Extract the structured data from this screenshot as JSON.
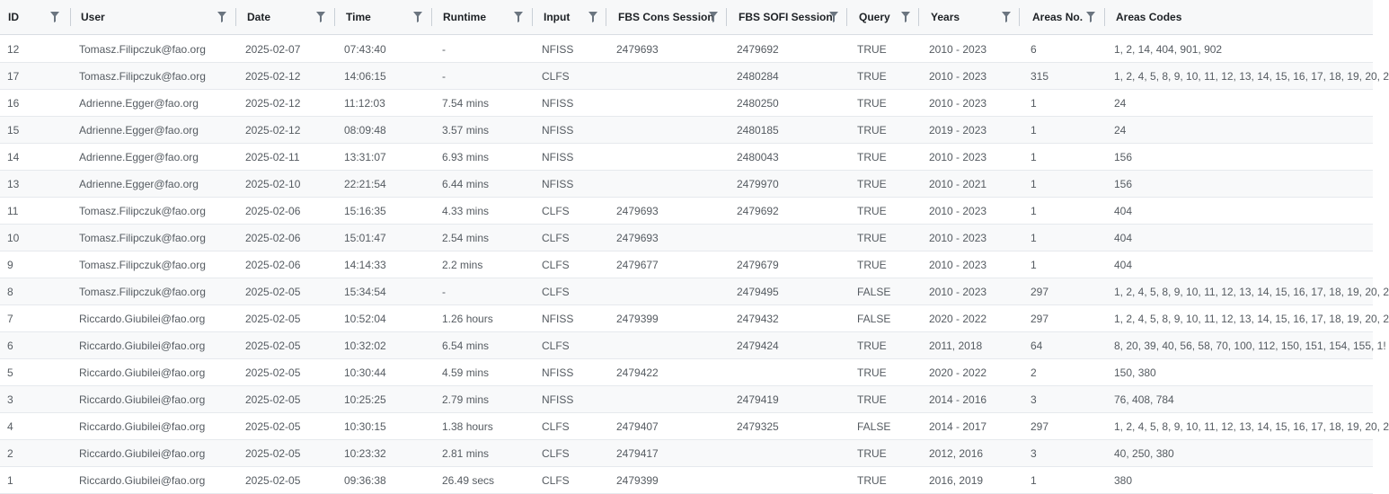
{
  "columns": [
    {
      "key": "id",
      "label": "ID",
      "name": "id"
    },
    {
      "key": "user",
      "label": "User",
      "name": "user"
    },
    {
      "key": "date",
      "label": "Date",
      "name": "date"
    },
    {
      "key": "time",
      "label": "Time",
      "name": "time"
    },
    {
      "key": "runtime",
      "label": "Runtime",
      "name": "runtime"
    },
    {
      "key": "input",
      "label": "Input",
      "name": "input"
    },
    {
      "key": "fbs_cons",
      "label": "FBS Cons Session",
      "name": "fbs-cons-session"
    },
    {
      "key": "fbs_sofi",
      "label": "FBS SOFI Session",
      "name": "fbs-sofi-session"
    },
    {
      "key": "query",
      "label": "Query",
      "name": "query"
    },
    {
      "key": "years",
      "label": "Years",
      "name": "years"
    },
    {
      "key": "areas_no",
      "label": "Areas No.",
      "name": "areas-no"
    },
    {
      "key": "areas_codes",
      "label": "Areas Codes",
      "name": "areas-codes"
    }
  ],
  "rows": [
    {
      "id": "12",
      "user": "Tomasz.Filipczuk@fao.org",
      "date": "2025-02-07",
      "time": "07:43:40",
      "runtime": "-",
      "input": "NFISS",
      "fbs_cons": "2479693",
      "fbs_sofi": "2479692",
      "query": "TRUE",
      "years": "2010 - 2023",
      "areas_no": "6",
      "areas_codes": "1, 2, 14, 404, 901, 902"
    },
    {
      "id": "17",
      "user": "Tomasz.Filipczuk@fao.org",
      "date": "2025-02-12",
      "time": "14:06:15",
      "runtime": "-",
      "input": "CLFS",
      "fbs_cons": "",
      "fbs_sofi": "2480284",
      "query": "TRUE",
      "years": "2010 - 2023",
      "areas_no": "315",
      "areas_codes": "1, 2, 4, 5, 8, 9, 10, 11, 12, 13, 14, 15, 16, 17, 18, 19, 20, 2"
    },
    {
      "id": "16",
      "user": "Adrienne.Egger@fao.org",
      "date": "2025-02-12",
      "time": "11:12:03",
      "runtime": "7.54 mins",
      "input": "NFISS",
      "fbs_cons": "",
      "fbs_sofi": "2480250",
      "query": "TRUE",
      "years": "2010 - 2023",
      "areas_no": "1",
      "areas_codes": "24"
    },
    {
      "id": "15",
      "user": "Adrienne.Egger@fao.org",
      "date": "2025-02-12",
      "time": "08:09:48",
      "runtime": "3.57 mins",
      "input": "NFISS",
      "fbs_cons": "",
      "fbs_sofi": "2480185",
      "query": "TRUE",
      "years": "2019 - 2023",
      "areas_no": "1",
      "areas_codes": "24"
    },
    {
      "id": "14",
      "user": "Adrienne.Egger@fao.org",
      "date": "2025-02-11",
      "time": "13:31:07",
      "runtime": "6.93 mins",
      "input": "NFISS",
      "fbs_cons": "",
      "fbs_sofi": "2480043",
      "query": "TRUE",
      "years": "2010 - 2023",
      "areas_no": "1",
      "areas_codes": "156"
    },
    {
      "id": "13",
      "user": "Adrienne.Egger@fao.org",
      "date": "2025-02-10",
      "time": "22:21:54",
      "runtime": "6.44 mins",
      "input": "NFISS",
      "fbs_cons": "",
      "fbs_sofi": "2479970",
      "query": "TRUE",
      "years": "2010 - 2021",
      "areas_no": "1",
      "areas_codes": "156"
    },
    {
      "id": "11",
      "user": "Tomasz.Filipczuk@fao.org",
      "date": "2025-02-06",
      "time": "15:16:35",
      "runtime": "4.33 mins",
      "input": "CLFS",
      "fbs_cons": "2479693",
      "fbs_sofi": "2479692",
      "query": "TRUE",
      "years": "2010 - 2023",
      "areas_no": "1",
      "areas_codes": "404"
    },
    {
      "id": "10",
      "user": "Tomasz.Filipczuk@fao.org",
      "date": "2025-02-06",
      "time": "15:01:47",
      "runtime": "2.54 mins",
      "input": "CLFS",
      "fbs_cons": "2479693",
      "fbs_sofi": "",
      "query": "TRUE",
      "years": "2010 - 2023",
      "areas_no": "1",
      "areas_codes": "404"
    },
    {
      "id": "9",
      "user": "Tomasz.Filipczuk@fao.org",
      "date": "2025-02-06",
      "time": "14:14:33",
      "runtime": "2.2 mins",
      "input": "CLFS",
      "fbs_cons": "2479677",
      "fbs_sofi": "2479679",
      "query": "TRUE",
      "years": "2010 - 2023",
      "areas_no": "1",
      "areas_codes": "404"
    },
    {
      "id": "8",
      "user": "Tomasz.Filipczuk@fao.org",
      "date": "2025-02-05",
      "time": "15:34:54",
      "runtime": "-",
      "input": "CLFS",
      "fbs_cons": "",
      "fbs_sofi": "2479495",
      "query": "FALSE",
      "years": "2010 - 2023",
      "areas_no": "297",
      "areas_codes": "1, 2, 4, 5, 8, 9, 10, 11, 12, 13, 14, 15, 16, 17, 18, 19, 20, 2"
    },
    {
      "id": "7",
      "user": "Riccardo.Giubilei@fao.org",
      "date": "2025-02-05",
      "time": "10:52:04",
      "runtime": "1.26 hours",
      "input": "NFISS",
      "fbs_cons": "2479399",
      "fbs_sofi": "2479432",
      "query": "FALSE",
      "years": "2020 - 2022",
      "areas_no": "297",
      "areas_codes": "1, 2, 4, 5, 8, 9, 10, 11, 12, 13, 14, 15, 16, 17, 18, 19, 20, 2"
    },
    {
      "id": "6",
      "user": "Riccardo.Giubilei@fao.org",
      "date": "2025-02-05",
      "time": "10:32:02",
      "runtime": "6.54 mins",
      "input": "CLFS",
      "fbs_cons": "",
      "fbs_sofi": "2479424",
      "query": "TRUE",
      "years": "2011, 2018",
      "areas_no": "64",
      "areas_codes": "8, 20, 39, 40, 56, 58, 70, 100, 112, 150, 151, 154, 155, 1!"
    },
    {
      "id": "5",
      "user": "Riccardo.Giubilei@fao.org",
      "date": "2025-02-05",
      "time": "10:30:44",
      "runtime": "4.59 mins",
      "input": "NFISS",
      "fbs_cons": "2479422",
      "fbs_sofi": "",
      "query": "TRUE",
      "years": "2020 - 2022",
      "areas_no": "2",
      "areas_codes": "150, 380"
    },
    {
      "id": "3",
      "user": "Riccardo.Giubilei@fao.org",
      "date": "2025-02-05",
      "time": "10:25:25",
      "runtime": "2.79 mins",
      "input": "NFISS",
      "fbs_cons": "",
      "fbs_sofi": "2479419",
      "query": "TRUE",
      "years": "2014 - 2016",
      "areas_no": "3",
      "areas_codes": "76, 408, 784"
    },
    {
      "id": "4",
      "user": "Riccardo.Giubilei@fao.org",
      "date": "2025-02-05",
      "time": "10:30:15",
      "runtime": "1.38 hours",
      "input": "CLFS",
      "fbs_cons": "2479407",
      "fbs_sofi": "2479325",
      "query": "FALSE",
      "years": "2014 - 2017",
      "areas_no": "297",
      "areas_codes": "1, 2, 4, 5, 8, 9, 10, 11, 12, 13, 14, 15, 16, 17, 18, 19, 20, 2"
    },
    {
      "id": "2",
      "user": "Riccardo.Giubilei@fao.org",
      "date": "2025-02-05",
      "time": "10:23:32",
      "runtime": "2.81 mins",
      "input": "CLFS",
      "fbs_cons": "2479417",
      "fbs_sofi": "",
      "query": "TRUE",
      "years": "2012, 2016",
      "areas_no": "3",
      "areas_codes": "40, 250, 380"
    },
    {
      "id": "1",
      "user": "Riccardo.Giubilei@fao.org",
      "date": "2025-02-05",
      "time": "09:36:38",
      "runtime": "26.49 secs",
      "input": "CLFS",
      "fbs_cons": "2479399",
      "fbs_sofi": "",
      "query": "TRUE",
      "years": "2016, 2019",
      "areas_no": "1",
      "areas_codes": "380"
    }
  ],
  "icons": {
    "filter": "filter-icon"
  },
  "colors": {
    "header_bg": "#f7f8f9",
    "row_alt_bg": "#f8f9fa",
    "filter_icon": "#6b7580"
  }
}
